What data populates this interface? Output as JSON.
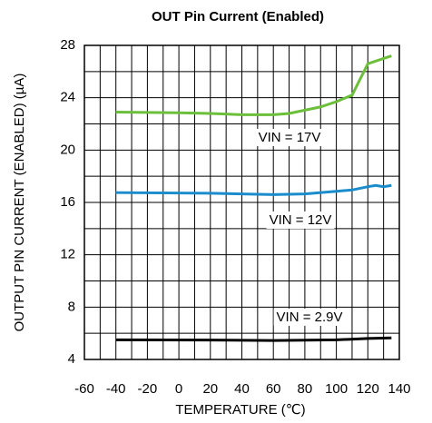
{
  "chart_data": {
    "type": "line",
    "title": "OUT Pin Current (Enabled)",
    "x_label": "TEMPERATURE (℃)",
    "y_label": "OUTPUT PIN CURRENT (ENABLED) (µA)",
    "xlim": [
      -60,
      140
    ],
    "xticks": [
      -60,
      -40,
      -20,
      0,
      20,
      40,
      60,
      80,
      100,
      120,
      140
    ],
    "ylim": [
      4,
      28
    ],
    "yticks": [
      4,
      8,
      12,
      16,
      20,
      24,
      28
    ],
    "grid": true,
    "minor_grid_divisions": 2,
    "series": [
      {
        "name": "VIN = 17V",
        "color": "#6cbf3a",
        "x": [
          -40,
          0,
          20,
          40,
          60,
          70,
          80,
          90,
          100,
          110,
          120,
          130,
          135
        ],
        "values": [
          22.9,
          22.85,
          22.8,
          22.7,
          22.7,
          22.8,
          23.05,
          23.3,
          23.7,
          24.2,
          26.6,
          27.0,
          27.2
        ]
      },
      {
        "name": "VIN = 12V",
        "color": "#1a8ccc",
        "x": [
          -40,
          20,
          60,
          80,
          100,
          110,
          120,
          125,
          130,
          135
        ],
        "values": [
          16.75,
          16.7,
          16.6,
          16.65,
          16.85,
          16.95,
          17.2,
          17.3,
          17.2,
          17.3
        ]
      },
      {
        "name": "VIN = 2.9V",
        "color": "#000000",
        "x": [
          -40,
          20,
          60,
          100,
          120,
          135
        ],
        "values": [
          5.5,
          5.48,
          5.45,
          5.5,
          5.6,
          5.65
        ]
      }
    ]
  }
}
